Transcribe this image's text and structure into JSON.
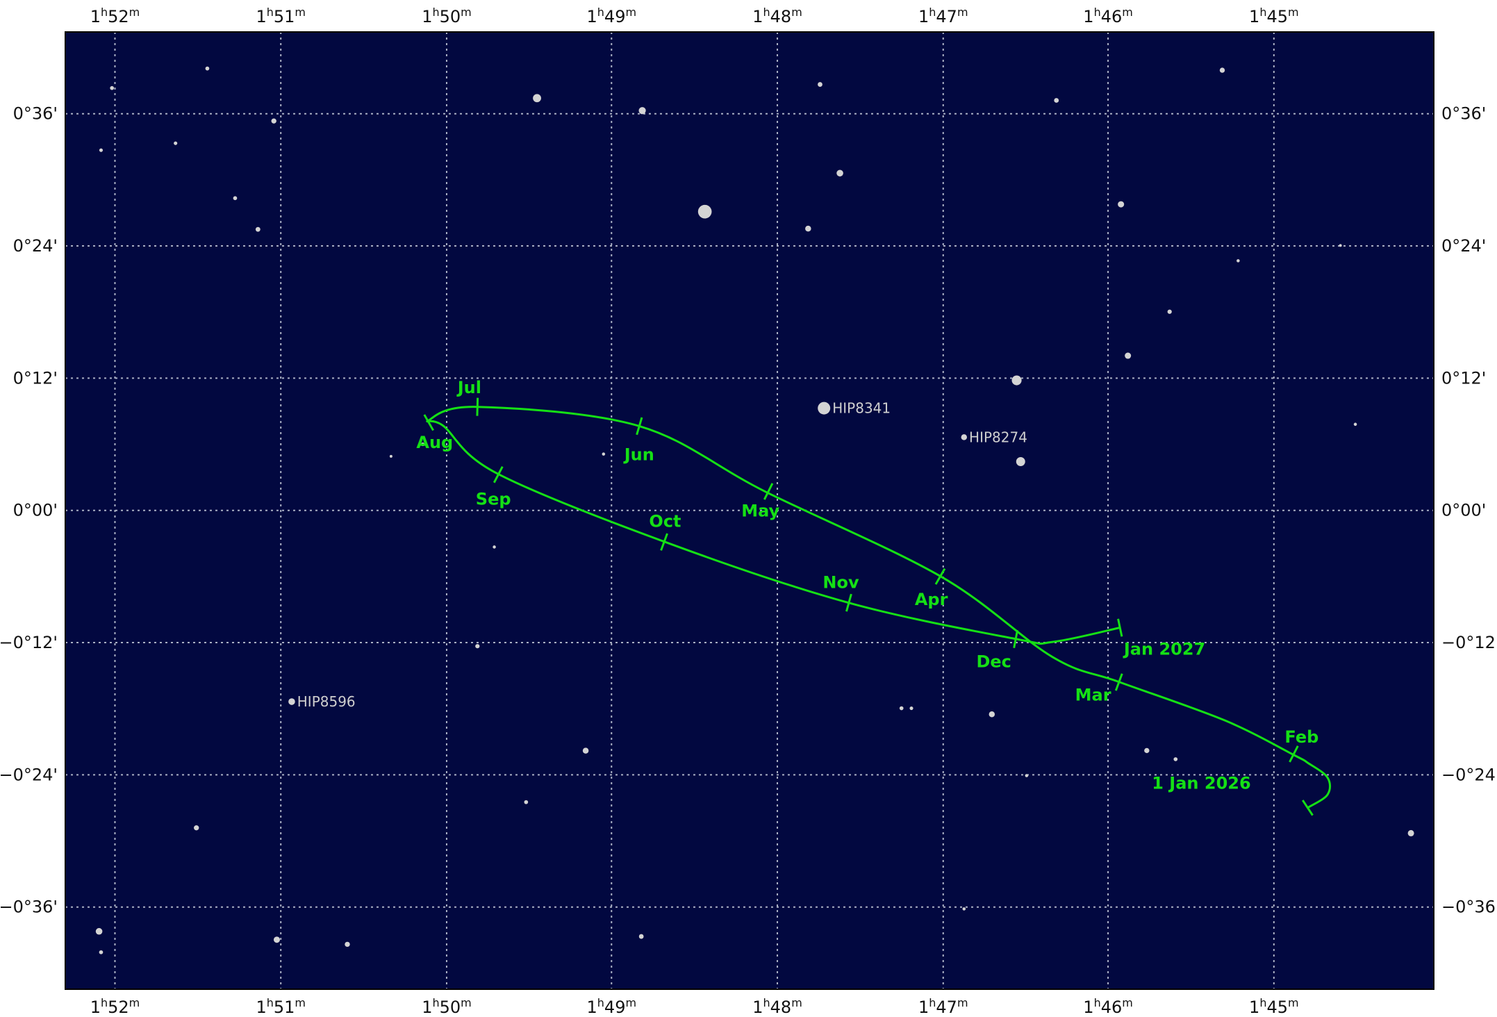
{
  "chart_data": {
    "type": "scatter",
    "title": "",
    "xlabel": "",
    "ylabel": "",
    "colors": {
      "sky": "#020840",
      "grid": "#aab0c4",
      "path": "#15e015",
      "star": "#d4d4d4",
      "star_label": "#cfcfcf",
      "axis_text": "#111111"
    },
    "ra_ticks": [
      {
        "h": "1",
        "m": "52",
        "ra": 1.8667
      },
      {
        "h": "1",
        "m": "51",
        "ra": 1.85
      },
      {
        "h": "1",
        "m": "50",
        "ra": 1.8333
      },
      {
        "h": "1",
        "m": "49",
        "ra": 1.8167
      },
      {
        "h": "1",
        "m": "48",
        "ra": 1.8
      },
      {
        "h": "1",
        "m": "47",
        "ra": 1.7833
      },
      {
        "h": "1",
        "m": "46",
        "ra": 1.7667
      },
      {
        "h": "1",
        "m": "45",
        "ra": 1.75
      }
    ],
    "dec_ticks": [
      {
        "label": "0°36'",
        "dec": 0.6
      },
      {
        "label": "0°24'",
        "dec": 0.4
      },
      {
        "label": "0°12'",
        "dec": 0.2
      },
      {
        "label": "0°00'",
        "dec": 0.0
      },
      {
        "label": "−0°12'",
        "dec": -0.2
      },
      {
        "label": "−0°24'",
        "dec": -0.4
      },
      {
        "label": "−0°36'",
        "dec": -0.6
      }
    ],
    "xlim_ra": [
      1.8717,
      1.7339
    ],
    "ylim_dec": [
      -0.7243,
      0.7237
    ],
    "named_stars": [
      {
        "name": "HIP8341",
        "ra": 1.7953,
        "dec": 0.1546,
        "mag": 7.9
      },
      {
        "name": "HIP8274",
        "ra": 1.7812,
        "dec": 0.1107,
        "mag": 9.6
      },
      {
        "name": "HIP8596",
        "ra": 1.8489,
        "dec": -0.2893,
        "mag": 9.4
      }
    ],
    "stars": [
      {
        "ra": 1.8073,
        "dec": 0.4519,
        "mag": 7.6
      },
      {
        "ra": 1.8242,
        "dec": 0.6236,
        "mag": 9.0
      },
      {
        "ra": 1.8136,
        "dec": 0.6047,
        "mag": 9.3
      },
      {
        "ra": 1.7937,
        "dec": 0.5101,
        "mag": 9.4
      },
      {
        "ra": 1.7957,
        "dec": 0.6443,
        "mag": 9.9
      },
      {
        "ra": 1.7719,
        "dec": 0.6202,
        "mag": 9.9
      },
      {
        "ra": 1.7654,
        "dec": 0.463,
        "mag": 9.5
      },
      {
        "ra": 1.7552,
        "dec": 0.6658,
        "mag": 9.8
      },
      {
        "ra": 1.7969,
        "dec": 0.4262,
        "mag": 9.6
      },
      {
        "ra": 1.8523,
        "dec": 0.4251,
        "mag": 9.9
      },
      {
        "ra": 1.8507,
        "dec": 0.589,
        "mag": 9.8
      },
      {
        "ra": 1.8606,
        "dec": 0.5554,
        "mag": 10.2
      },
      {
        "ra": 1.8574,
        "dec": 0.6684,
        "mag": 10.1
      },
      {
        "ra": 1.8681,
        "dec": 0.5449,
        "mag": 10.2
      },
      {
        "ra": 1.867,
        "dec": 0.6389,
        "mag": 10.1
      },
      {
        "ra": 1.8546,
        "dec": 0.4723,
        "mag": 10.1
      },
      {
        "ra": 1.7759,
        "dec": 0.1967,
        "mag": 8.6
      },
      {
        "ra": 1.7647,
        "dec": 0.234,
        "mag": 9.5
      },
      {
        "ra": 1.7605,
        "dec": 0.3005,
        "mag": 10.0
      },
      {
        "ra": 1.7536,
        "dec": 0.3776,
        "mag": 10.3
      },
      {
        "ra": 1.7755,
        "dec": 0.0738,
        "mag": 8.8
      },
      {
        "ra": 1.7418,
        "dec": 0.1302,
        "mag": 10.3
      },
      {
        "ra": 1.7433,
        "dec": 0.4007,
        "mag": 10.4
      },
      {
        "ra": 1.7362,
        "dec": -0.4883,
        "mag": 9.5
      },
      {
        "ra": 1.7628,
        "dec": -0.3633,
        "mag": 9.8
      },
      {
        "ra": 1.7599,
        "dec": -0.3764,
        "mag": 10.1
      },
      {
        "ra": 1.7784,
        "dec": -0.3085,
        "mag": 9.6
      },
      {
        "ra": 1.7749,
        "dec": -0.4012,
        "mag": 10.3
      },
      {
        "ra": 1.8193,
        "dec": -0.3635,
        "mag": 9.6
      },
      {
        "ra": 1.8302,
        "dec": -0.2054,
        "mag": 10.0
      },
      {
        "ra": 1.8683,
        "dec": -0.6368,
        "mag": 9.4
      },
      {
        "ra": 1.8504,
        "dec": -0.6494,
        "mag": 9.5
      },
      {
        "ra": 1.8433,
        "dec": -0.6564,
        "mag": 9.8
      },
      {
        "ra": 1.8585,
        "dec": -0.4802,
        "mag": 9.8
      },
      {
        "ra": 1.8253,
        "dec": -0.4413,
        "mag": 10.1
      },
      {
        "ra": 1.8137,
        "dec": -0.6445,
        "mag": 9.9
      },
      {
        "ra": 1.7875,
        "dec": -0.2993,
        "mag": 10.1
      },
      {
        "ra": 1.7865,
        "dec": -0.2993,
        "mag": 10.2
      },
      {
        "ra": 1.7812,
        "dec": -0.6028,
        "mag": 10.3
      },
      {
        "ra": 1.8681,
        "dec": -0.6684,
        "mag": 10.1
      },
      {
        "ra": 1.8285,
        "dec": -0.0554,
        "mag": 10.3
      },
      {
        "ra": 1.8175,
        "dec": 0.0852,
        "mag": 10.3
      },
      {
        "ra": 1.8357,
        "dec": 0.1,
        "mag": 10.2
      },
      {
        "ra": 1.8389,
        "dec": 0.0818,
        "mag": 10.4
      }
    ],
    "path_labels": [
      {
        "text": "1 Jan 2026",
        "ra": 1.7573,
        "dec": -0.4125
      },
      {
        "text": "Feb",
        "ra": 1.7472,
        "dec": -0.343
      },
      {
        "text": "Mar",
        "ra": 1.7682,
        "dec": -0.2792
      },
      {
        "text": "Apr",
        "ra": 1.7845,
        "dec": -0.1347
      },
      {
        "text": "May",
        "ra": 1.8017,
        "dec": -0.0008
      },
      {
        "text": "Jun",
        "ra": 1.8139,
        "dec": 0.0842
      },
      {
        "text": "Jul",
        "ra": 1.831,
        "dec": 0.1855
      },
      {
        "text": "Aug",
        "ra": 1.8345,
        "dec": 0.1026
      },
      {
        "text": "Sep",
        "ra": 1.8286,
        "dec": 0.017
      },
      {
        "text": "Oct",
        "ra": 1.8113,
        "dec": -0.0166
      },
      {
        "text": "Nov",
        "ra": 1.7936,
        "dec": -0.1089
      },
      {
        "text": "Dec",
        "ra": 1.7782,
        "dec": -0.2289
      },
      {
        "text": "Jan 2027",
        "ra": 1.761,
        "dec": -0.2097
      }
    ],
    "path_ticks": [
      {
        "ra": 1.7466,
        "dec": -0.4498
      },
      {
        "ra": 1.748,
        "dec": -0.3685
      },
      {
        "ra": 1.7656,
        "dec": -0.2598
      },
      {
        "ra": 1.7836,
        "dec": -0.1
      },
      {
        "ra": 1.8009,
        "dec": 0.0287
      },
      {
        "ra": 1.8139,
        "dec": 0.1275
      },
      {
        "ra": 1.8302,
        "dec": 0.1566
      },
      {
        "ra": 1.8351,
        "dec": 0.1329
      },
      {
        "ra": 1.8281,
        "dec": 0.0541
      },
      {
        "ra": 1.8114,
        "dec": -0.0478
      },
      {
        "ra": 1.7928,
        "dec": -0.1397
      },
      {
        "ra": 1.776,
        "dec": -0.1947
      },
      {
        "ra": 1.7655,
        "dec": -0.1774
      }
    ],
    "path": [
      {
        "ra": 1.7466,
        "dec": -0.4498
      },
      {
        "ra": 1.7446,
        "dec": -0.43
      },
      {
        "ra": 1.7446,
        "dec": -0.4041
      },
      {
        "ra": 1.7466,
        "dec": -0.3817
      },
      {
        "ra": 1.7479,
        "dec": -0.3707
      },
      {
        "ra": 1.7549,
        "dec": -0.318
      },
      {
        "ra": 1.7655,
        "dec": -0.2599
      },
      {
        "ra": 1.7723,
        "dec": -0.2217
      },
      {
        "ra": 1.7835,
        "dec": -0.1003
      },
      {
        "ra": 1.8012,
        "dec": 0.0283
      },
      {
        "ra": 1.8139,
        "dec": 0.1275
      },
      {
        "ra": 1.8302,
        "dec": 0.1566
      },
      {
        "ra": 1.8351,
        "dec": 0.1362
      },
      {
        "ra": 1.8336,
        "dec": 0.1275
      },
      {
        "ra": 1.8283,
        "dec": 0.0566
      },
      {
        "ra": 1.8113,
        "dec": -0.0478
      },
      {
        "ra": 1.7928,
        "dec": -0.1398
      },
      {
        "ra": 1.7759,
        "dec": -0.1947
      },
      {
        "ra": 1.7723,
        "dec": -0.199
      },
      {
        "ra": 1.7655,
        "dec": -0.1774
      }
    ]
  }
}
